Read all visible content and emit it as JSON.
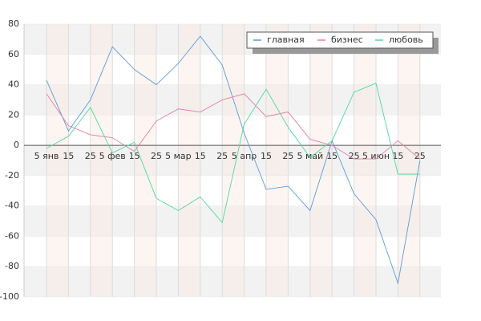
{
  "chart_data": {
    "type": "line",
    "categories": [
      "5 янв",
      "15",
      "25",
      "5 фев",
      "15",
      "25",
      "5 мар",
      "15",
      "25",
      "5 апр",
      "15",
      "25",
      "5 май",
      "15",
      "25",
      "5 июн",
      "15",
      "25"
    ],
    "series": [
      {
        "name": "главная",
        "color": "#5b9bd5",
        "values": [
          43,
          9.5,
          30,
          65,
          50,
          40,
          54,
          72,
          53,
          8,
          -29,
          -27,
          -43,
          3,
          -32,
          -49,
          -91,
          -10
        ]
      },
      {
        "name": "бизнес",
        "color": "#e07fa8",
        "values": [
          34,
          13,
          7,
          5,
          -4,
          16,
          24,
          22,
          30,
          34,
          19,
          22,
          4,
          0,
          -9,
          -9,
          3,
          -9
        ]
      },
      {
        "name": "любовь",
        "color": "#4dd9a0",
        "values": [
          -2,
          6,
          25,
          -5,
          2,
          -35,
          -43,
          -34,
          -51,
          14,
          37,
          12,
          -8,
          3,
          35,
          41,
          -19,
          -19
        ]
      }
    ],
    "ylim": [
      -100,
      80
    ],
    "yticks": [
      -100,
      -80,
      -60,
      -40,
      -20,
      0,
      20,
      40,
      60,
      80
    ],
    "grid": true,
    "legend": "top-right"
  }
}
